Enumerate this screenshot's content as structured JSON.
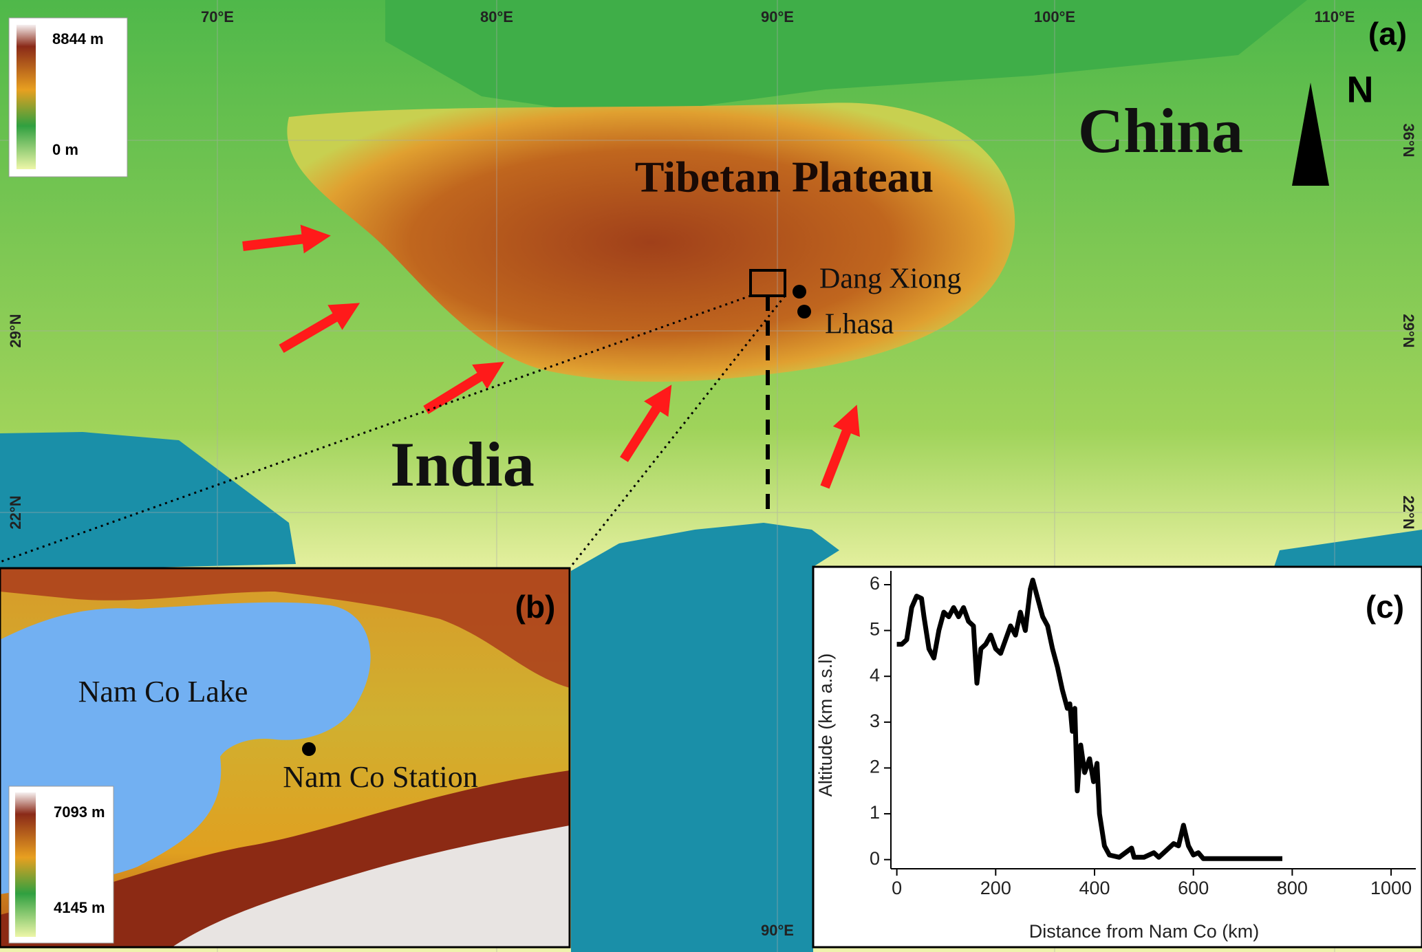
{
  "panel_a": {
    "label": "(a)",
    "legend": {
      "max": "8844 m",
      "min": "0 m"
    },
    "lon_ticks": [
      "70°E",
      "80°E",
      "90°E",
      "100°E",
      "110°E"
    ],
    "lat_ticks": [
      "36°N",
      "29°N",
      "22°N"
    ],
    "places": {
      "china": "China",
      "plateau": "Tibetan Plateau",
      "india": "India"
    },
    "stations": [
      "Dang Xiong",
      "Lhasa"
    ],
    "north": "N"
  },
  "panel_b": {
    "label": "(b)",
    "lake": "Nam Co Lake",
    "station": "Nam Co Station",
    "legend": {
      "max": "7093 m",
      "min": "4145 m"
    }
  },
  "chart_data": {
    "type": "line",
    "label": "(c)",
    "x_label": "Distance from Nam Co (km)",
    "y_label": "Altitude (km a.s.l)",
    "x": [
      0,
      10,
      20,
      30,
      40,
      50,
      55,
      65,
      75,
      85,
      95,
      105,
      115,
      125,
      135,
      145,
      155,
      162,
      170,
      180,
      190,
      200,
      210,
      220,
      230,
      240,
      250,
      260,
      270,
      275,
      285,
      295,
      305,
      315,
      325,
      335,
      345,
      350,
      355,
      360,
      365,
      372,
      380,
      390,
      398,
      405,
      410,
      420,
      430,
      450,
      475,
      480,
      500,
      520,
      530,
      545,
      560,
      570,
      580,
      590,
      600,
      610,
      620,
      700,
      780
    ],
    "series": [
      {
        "color": "#000000",
        "values": [
          4.7,
          4.7,
          4.8,
          5.5,
          5.75,
          5.7,
          5.3,
          4.6,
          4.4,
          5.0,
          5.4,
          5.3,
          5.5,
          5.3,
          5.5,
          5.2,
          5.1,
          3.85,
          4.6,
          4.7,
          4.9,
          4.6,
          4.5,
          4.8,
          5.1,
          4.9,
          5.4,
          5.0,
          5.9,
          6.1,
          5.7,
          5.3,
          5.1,
          4.6,
          4.2,
          3.7,
          3.3,
          3.4,
          2.8,
          3.3,
          1.5,
          2.5,
          1.9,
          2.2,
          1.7,
          2.1,
          1.0,
          0.3,
          0.1,
          0.05,
          0.25,
          0.05,
          0.05,
          0.15,
          0.05,
          0.2,
          0.35,
          0.3,
          0.75,
          0.3,
          0.1,
          0.15,
          0.02,
          0.02,
          0.02
        ]
      }
    ],
    "xlim": [
      -12,
      1050
    ],
    "xticks": [
      0,
      200,
      400,
      600,
      800,
      1000
    ],
    "ylim": [
      -0.2,
      6.3
    ],
    "yticks": [
      0,
      1,
      2,
      3,
      4,
      5,
      6
    ]
  }
}
